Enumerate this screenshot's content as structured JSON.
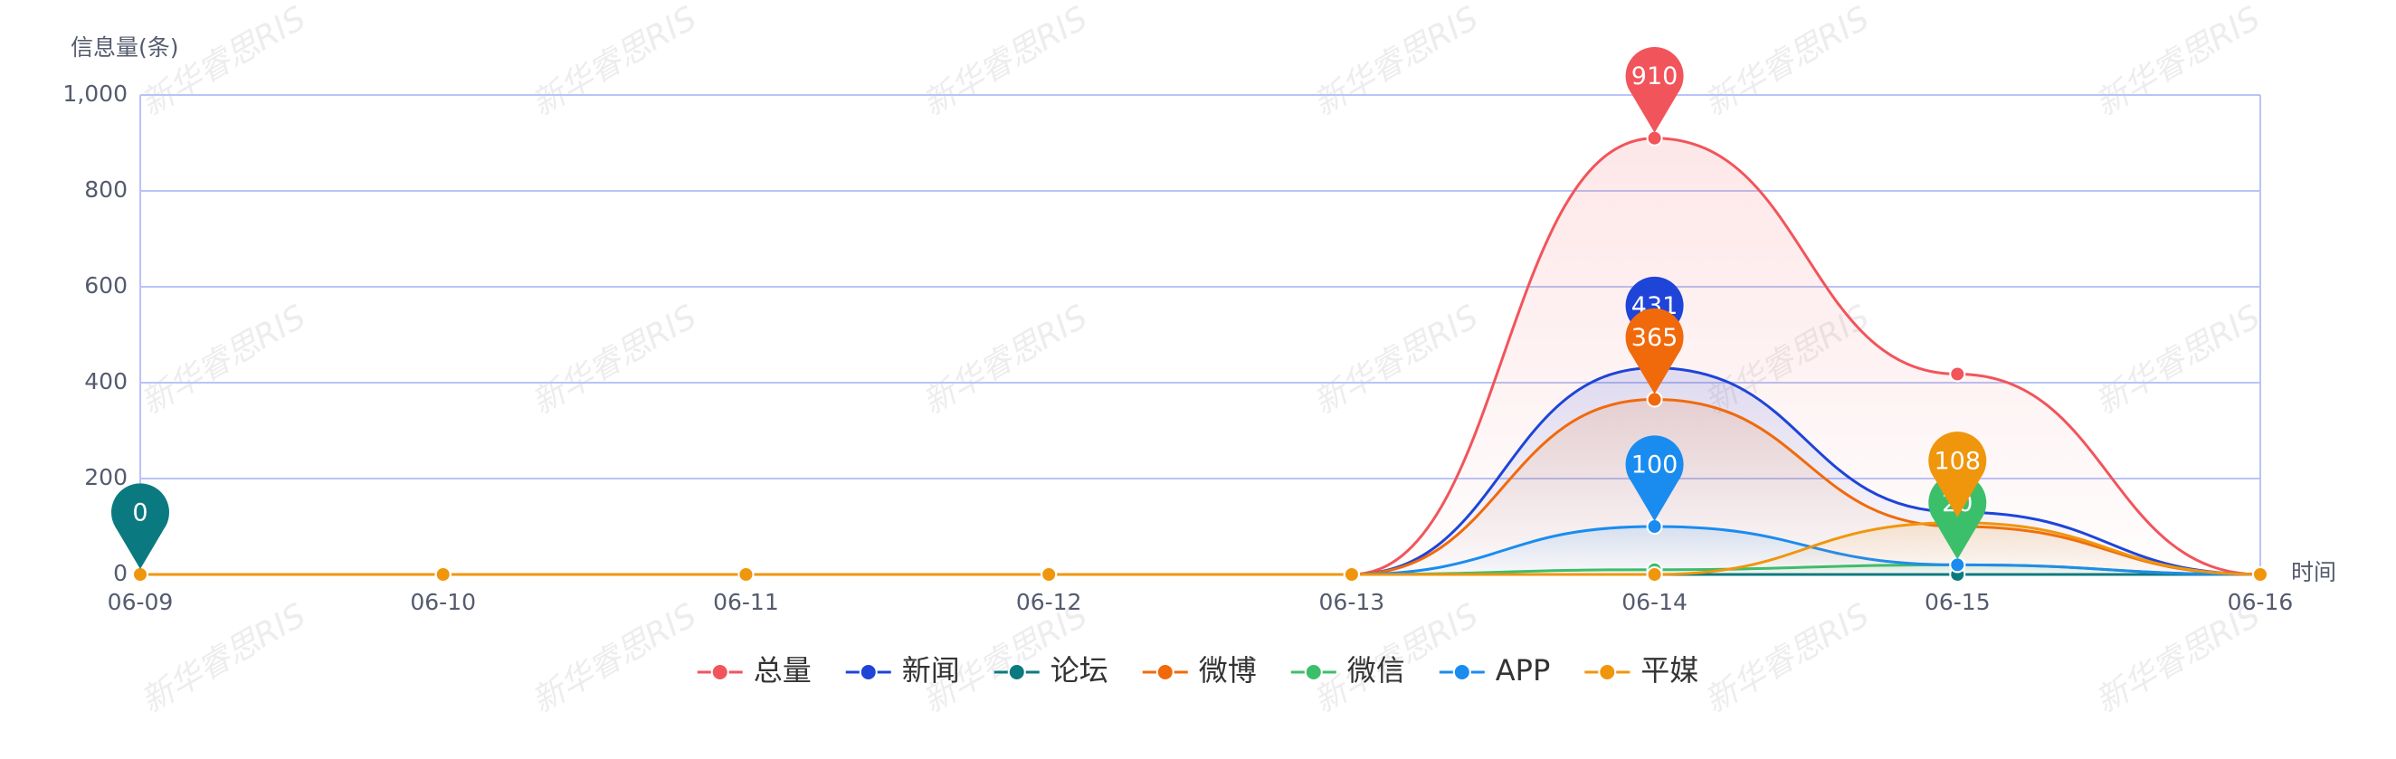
{
  "chart_data": {
    "type": "line",
    "watermark": "新华睿思RIS",
    "y_axis_label": "信息量(条)",
    "x_axis_label": "时间",
    "categories": [
      "06-09",
      "06-10",
      "06-11",
      "06-12",
      "06-13",
      "06-14",
      "06-15",
      "06-16"
    ],
    "ylim": [
      0,
      1000
    ],
    "yticks": [
      0,
      200,
      400,
      600,
      800,
      {
        "value": 1000,
        "label": "1,000"
      }
    ],
    "grid": true,
    "legend": "bottom",
    "smooth": true,
    "series": [
      {
        "name": "总量",
        "color": "#f2545b",
        "values": [
          0,
          0,
          0,
          0,
          0,
          910,
          418,
          0
        ]
      },
      {
        "name": "新闻",
        "color": "#1e44d8",
        "values": [
          0,
          0,
          0,
          0,
          0,
          431,
          130,
          0
        ]
      },
      {
        "name": "论坛",
        "color": "#0b7a80",
        "values": [
          0,
          0,
          0,
          0,
          0,
          0,
          0,
          0
        ]
      },
      {
        "name": "微博",
        "color": "#f06a0c",
        "values": [
          0,
          0,
          0,
          0,
          0,
          365,
          100,
          0
        ]
      },
      {
        "name": "微信",
        "color": "#3cbf6a",
        "values": [
          0,
          0,
          0,
          0,
          0,
          10,
          20,
          0
        ]
      },
      {
        "name": "APP",
        "color": "#1a8cf0",
        "values": [
          0,
          0,
          0,
          0,
          0,
          100,
          20,
          0
        ]
      },
      {
        "name": "平媒",
        "color": "#f0960c",
        "values": [
          0,
          0,
          0,
          0,
          0,
          0,
          108,
          0
        ]
      }
    ]
  }
}
